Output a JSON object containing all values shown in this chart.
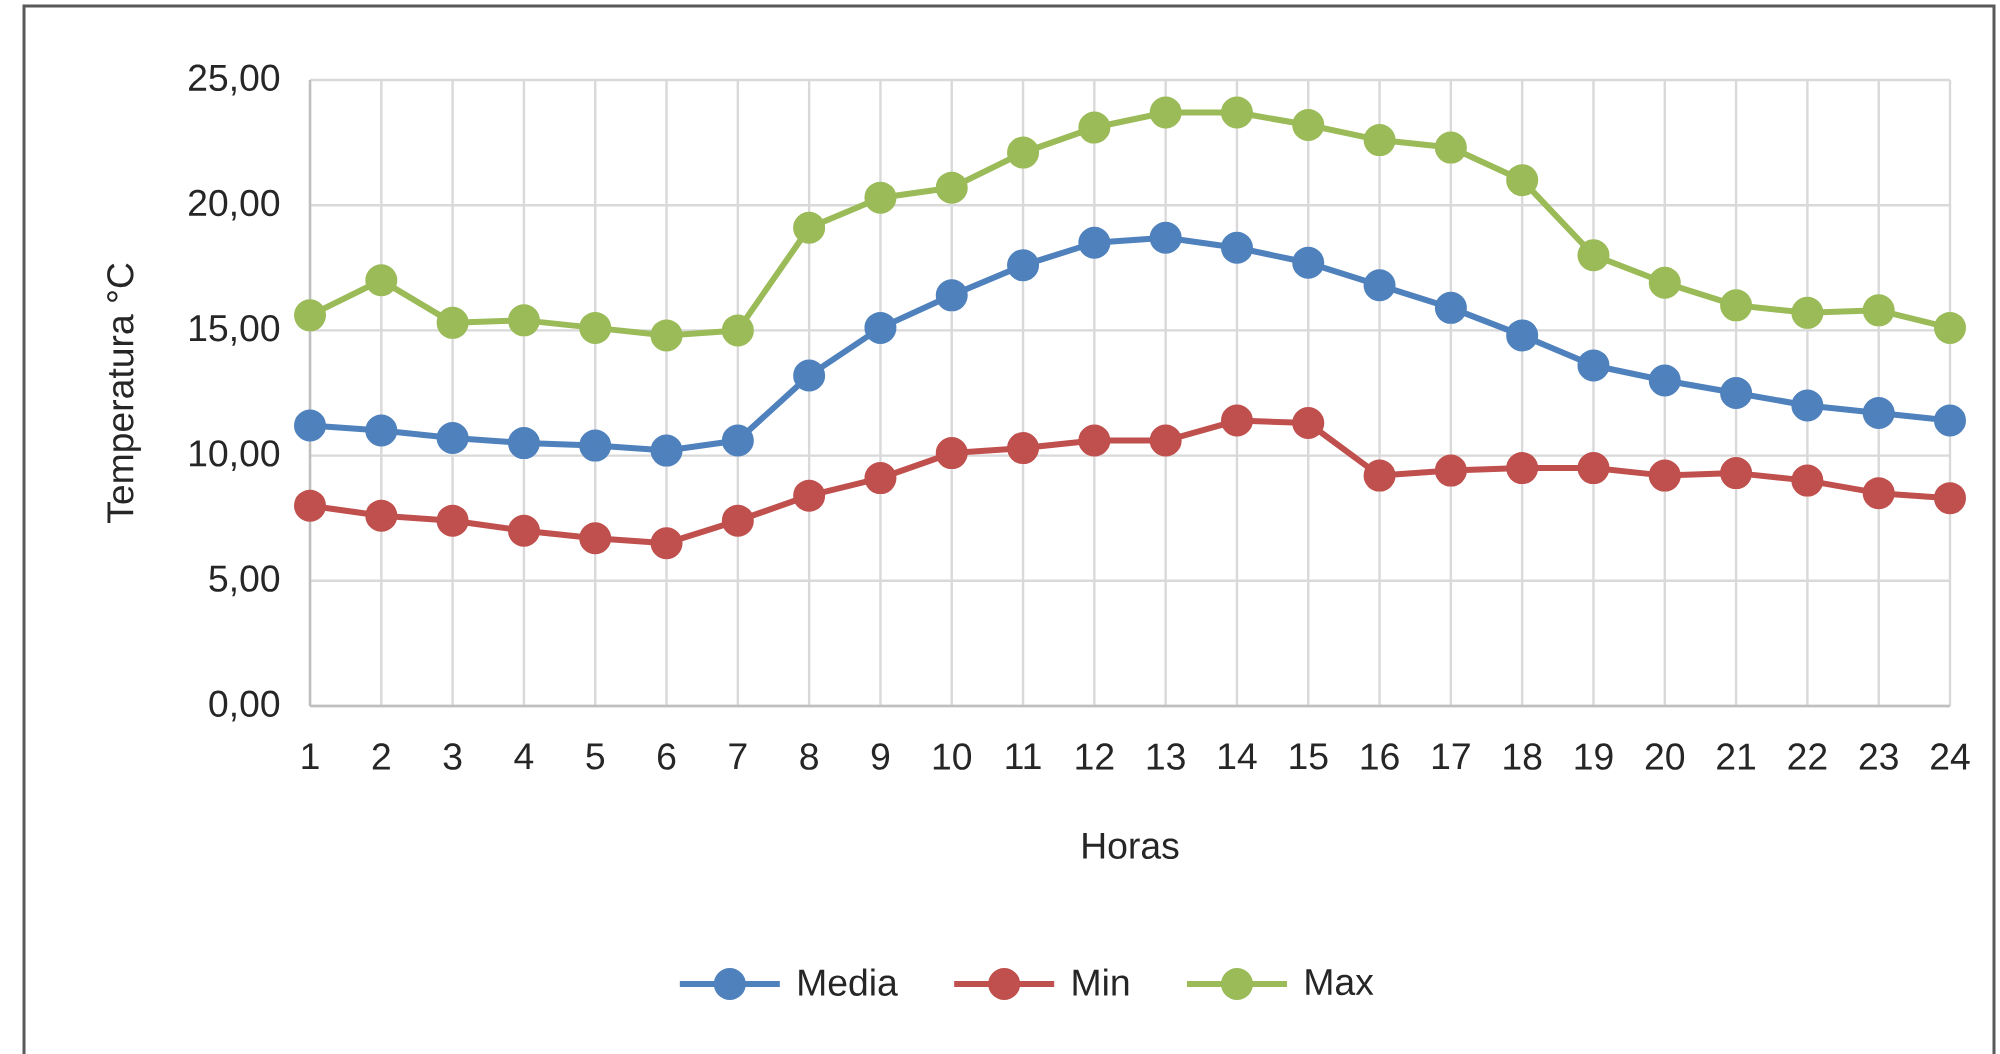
{
  "chart_data": {
    "type": "line",
    "xlabel": "Horas",
    "ylabel": "Temperatura °C",
    "categories": [
      "1",
      "2",
      "3",
      "4",
      "5",
      "6",
      "7",
      "8",
      "9",
      "10",
      "11",
      "12",
      "13",
      "14",
      "15",
      "16",
      "17",
      "18",
      "19",
      "20",
      "21",
      "22",
      "23",
      "24"
    ],
    "ylim": [
      0,
      25
    ],
    "yticks": [
      {
        "value": 0,
        "label": "0,00"
      },
      {
        "value": 5,
        "label": "5,00"
      },
      {
        "value": 10,
        "label": "10,00"
      },
      {
        "value": 15,
        "label": "15,00"
      },
      {
        "value": 20,
        "label": "20,00"
      },
      {
        "value": 25,
        "label": "25,00"
      }
    ],
    "grid": true,
    "legend": "bottom",
    "marker": "circle",
    "line_style": "solid",
    "series": [
      {
        "name": "Media",
        "color": "#4f81bd",
        "values": [
          11.2,
          11.0,
          10.7,
          10.5,
          10.4,
          10.2,
          10.6,
          13.2,
          15.1,
          16.4,
          17.6,
          18.5,
          18.7,
          18.3,
          17.7,
          16.8,
          15.9,
          14.8,
          13.6,
          13.0,
          12.5,
          12.0,
          11.7,
          11.4
        ]
      },
      {
        "name": "Min",
        "color": "#c0504d",
        "values": [
          8.0,
          7.6,
          7.4,
          7.0,
          6.7,
          6.5,
          7.4,
          8.4,
          9.1,
          10.1,
          10.3,
          10.6,
          10.6,
          11.4,
          11.3,
          9.2,
          9.4,
          9.5,
          9.5,
          9.2,
          9.3,
          9.0,
          8.5,
          8.3
        ]
      },
      {
        "name": "Max",
        "color": "#9bbb59",
        "values": [
          15.6,
          17.0,
          15.3,
          15.4,
          15.1,
          14.8,
          15.0,
          19.1,
          20.3,
          20.7,
          22.1,
          23.1,
          23.7,
          23.7,
          23.2,
          22.6,
          22.3,
          21.0,
          18.0,
          16.9,
          16.0,
          15.7,
          15.8,
          15.1
        ]
      }
    ]
  }
}
